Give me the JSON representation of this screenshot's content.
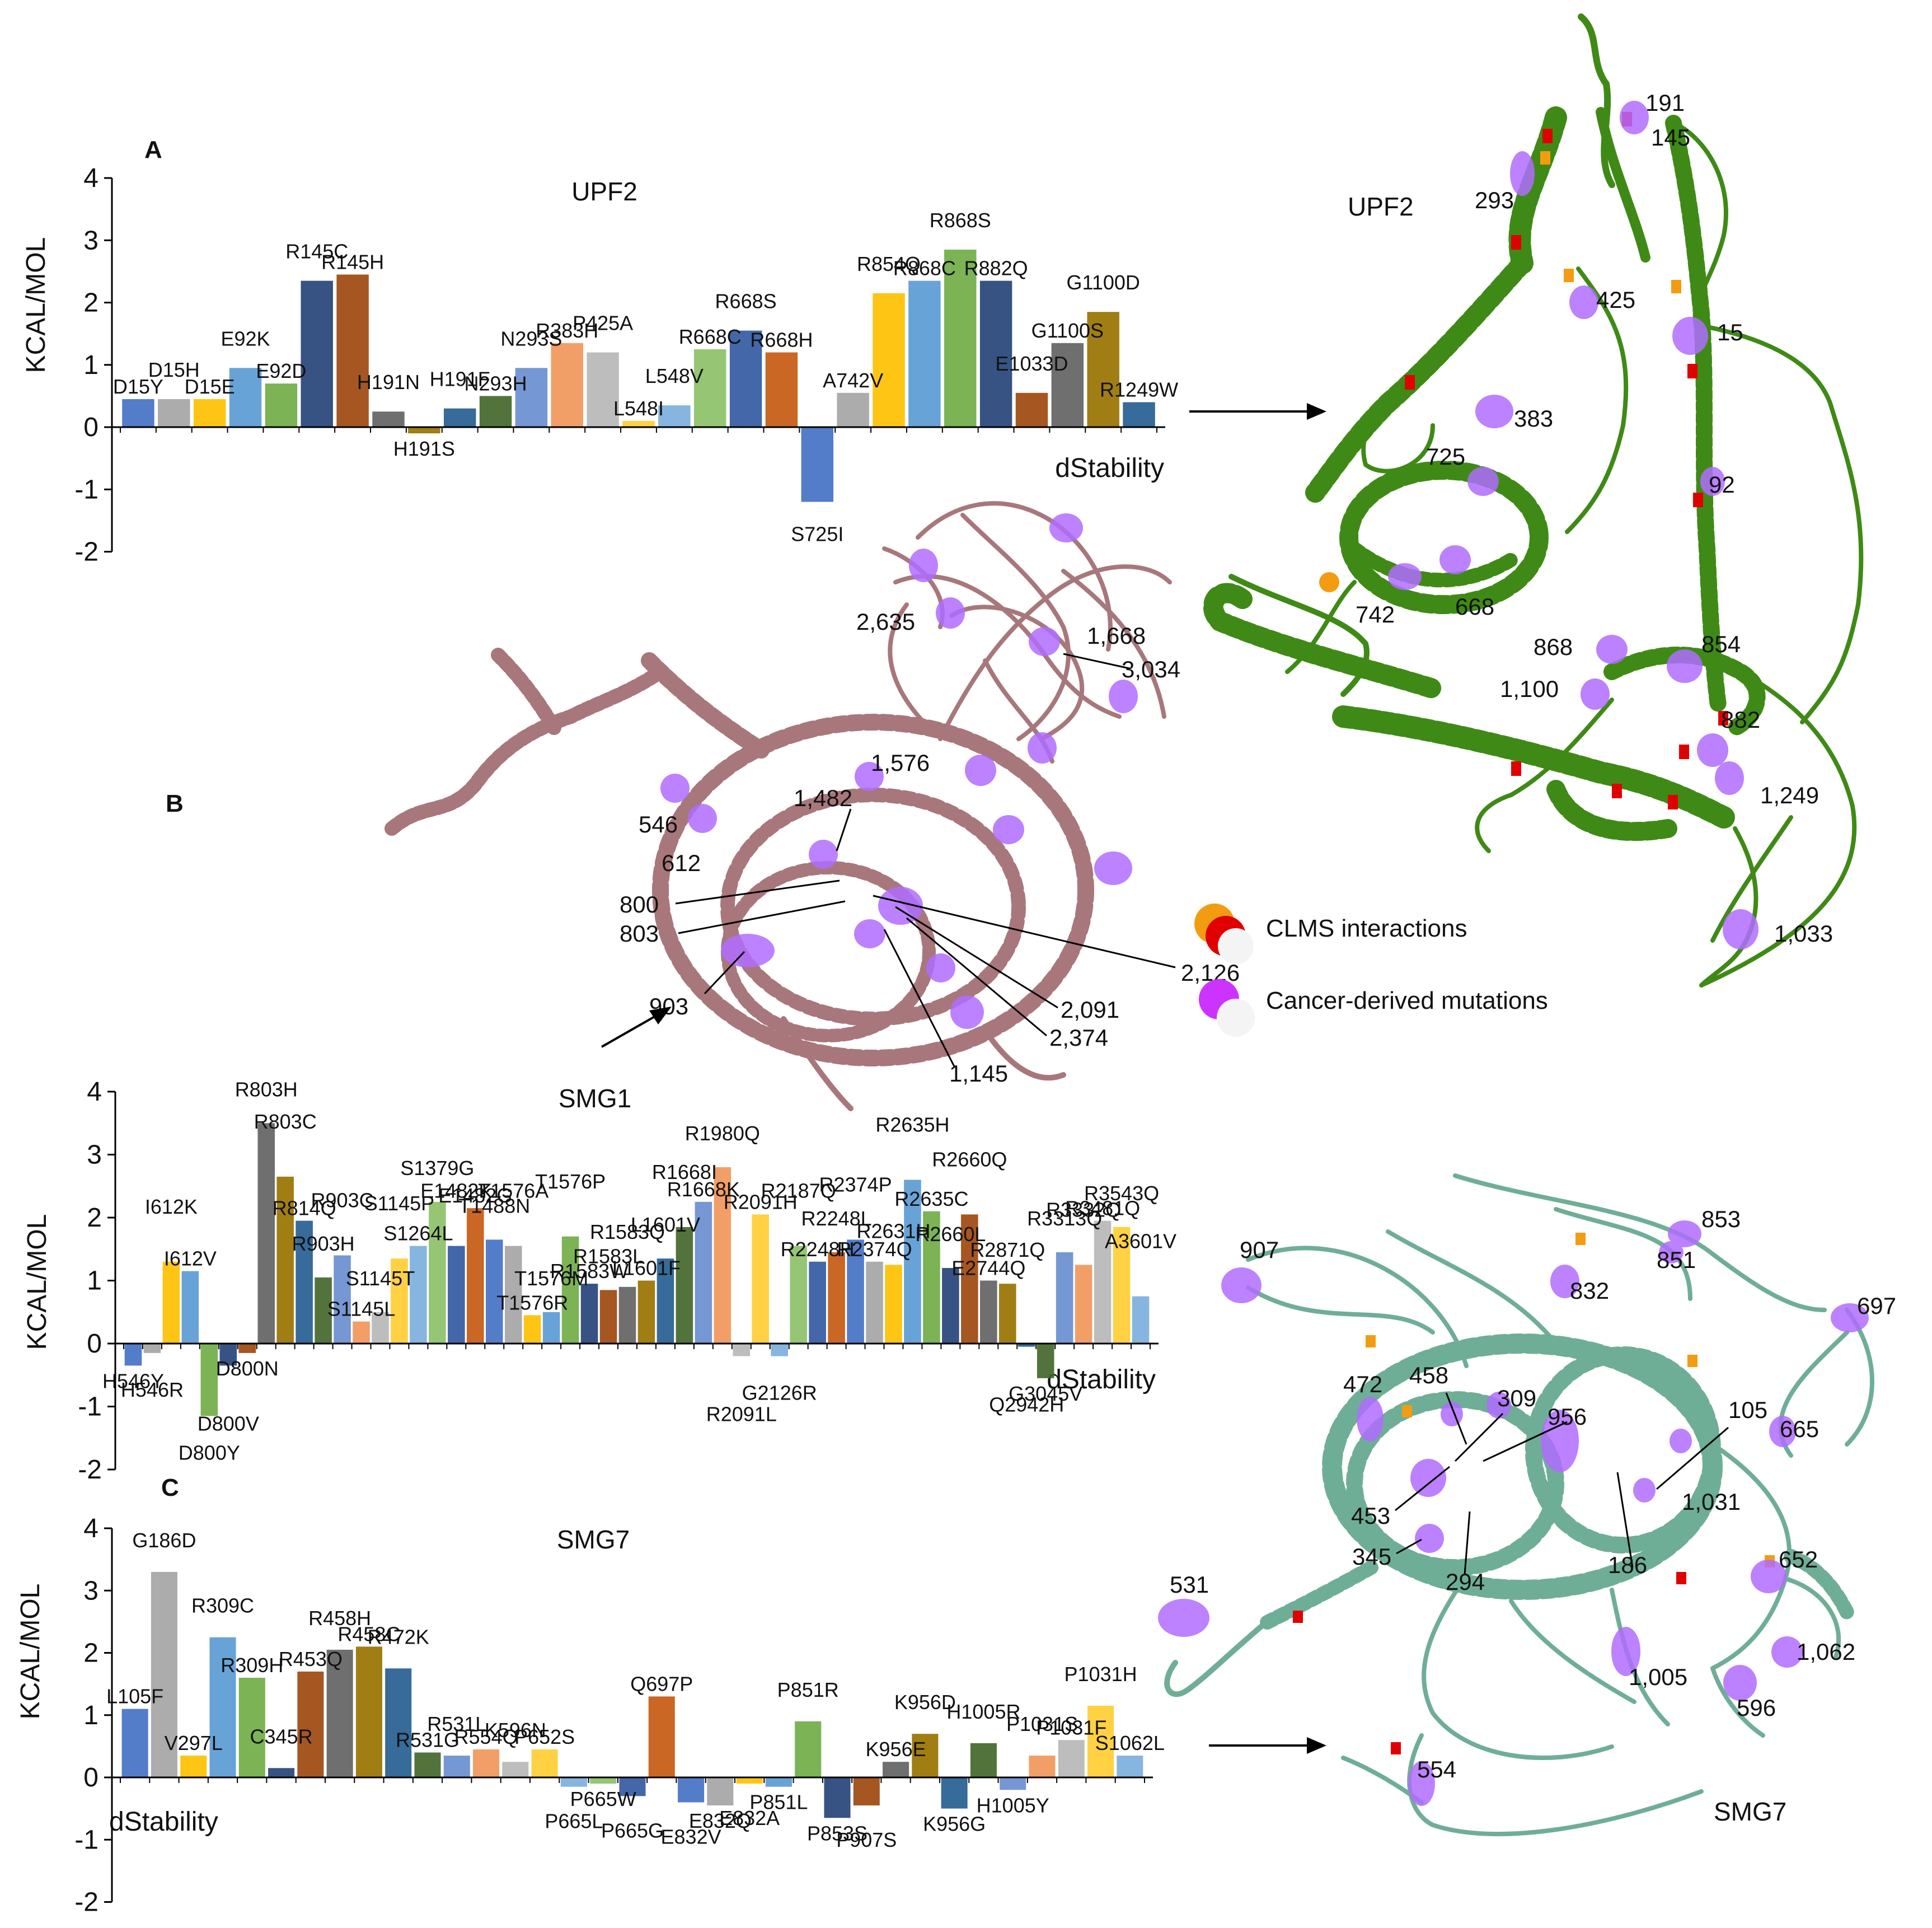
{
  "panels": {
    "a": "A",
    "b": "B",
    "c": "C"
  },
  "structure_labels": {
    "upf2_name": "UPF2",
    "smg1_name": "SMG1",
    "smg7_name": "SMG7",
    "upf2_residues": [
      "191",
      "145",
      "293",
      "425",
      "15",
      "383",
      "725",
      "92",
      "742",
      "668",
      "868",
      "854",
      "1,100",
      "882",
      "1,249",
      "1,033"
    ],
    "smg1_residues": [
      "2,635",
      "1,668",
      "3,034",
      "1,576",
      "1,482",
      "546",
      "612",
      "800",
      "803",
      "903",
      "2,126",
      "2,091",
      "2,374",
      "1,145"
    ],
    "smg7_residues": [
      "853",
      "907",
      "851",
      "832",
      "697",
      "472",
      "458",
      "309",
      "956",
      "105",
      "665",
      "1,031",
      "453",
      "345",
      "186",
      "294",
      "652",
      "531",
      "1,062",
      "1,005",
      "596",
      "554"
    ]
  },
  "legend": {
    "clms": "CLMS interactions",
    "cancer": "Cancer-derived mutations",
    "clms_colors": [
      "#f39c12",
      "#e00000"
    ],
    "cancer_color": "#cc33ff"
  },
  "colors": {
    "upf2_ribbon": "#3f8a16",
    "smg1_ribbon": "#a8777b",
    "smg7_ribbon": "#6fae96",
    "mesh": "#b06cff",
    "palette": [
      "#4472c4",
      "#a5a5a5",
      "#ffc000",
      "#5b9bd5",
      "#70ad47",
      "#264478",
      "#9e480e",
      "#636363",
      "#997300",
      "#255e91",
      "#43682b",
      "#698ed0",
      "#f1975a",
      "#b7b7b7",
      "#ffcd33",
      "#7cafdd",
      "#8cc168",
      "#335aa1",
      "#c55a11"
    ]
  },
  "chart_data": [
    {
      "type": "bar",
      "title": "UPF2",
      "xlabel": "dStability",
      "ylabel": "KCAL/MOL",
      "ylim": [
        -2,
        4
      ],
      "yticks": [
        "-2",
        "-1",
        "0",
        "1",
        "2",
        "3",
        "4"
      ],
      "categories": [
        "D15Y",
        "D15H",
        "D15E",
        "E92K",
        "E92D",
        "R145C",
        "R145H",
        "H191N",
        "H191S",
        "H191F",
        "N293H",
        "N293S",
        "R383H",
        "P425A",
        "L548I",
        "L548V",
        "R668C",
        "R668S",
        "R668H",
        "S725I",
        "A742V",
        "R854Q",
        "R868C",
        "R868S",
        "R882Q",
        "E1033D",
        "G1100S",
        "G1100D",
        "R1249W"
      ],
      "values": [
        0.45,
        0.45,
        0.45,
        0.95,
        0.7,
        2.35,
        2.45,
        0.25,
        -0.1,
        0.3,
        0.5,
        0.95,
        1.35,
        1.2,
        0.1,
        0.35,
        1.25,
        1.55,
        1.2,
        -1.2,
        0.55,
        2.15,
        2.35,
        2.85,
        2.35,
        0.55,
        1.35,
        1.85,
        0.4
      ]
    },
    {
      "type": "bar",
      "title": "SMG1",
      "xlabel": "dStability",
      "ylabel": "KCAL/MOL",
      "ylim": [
        -2,
        4
      ],
      "yticks": [
        "-2",
        "-1",
        "0",
        "1",
        "2",
        "3",
        "4"
      ],
      "categories": [
        "H546Y",
        "H546R",
        "I612K",
        "I612V",
        "D800Y",
        "D800V",
        "D800N",
        "R803H",
        "R803C",
        "R814Q",
        "R903H",
        "R903C",
        "S1145L",
        "S1145T",
        "S1145P",
        "S1264L",
        "S1379G",
        "E1482K",
        "E1482G",
        "T1488N",
        "T1576A",
        "T1576R",
        "T1576M",
        "T1576P",
        "R1583W",
        "R1583L",
        "R1583Q",
        "L1601F",
        "L1601V",
        "R1668I",
        "R1668K",
        "R1980Q",
        "R2091L",
        "R2091H",
        "G2126R",
        "R2187Q",
        "R2248H",
        "R2248L",
        "R2374P",
        "R2374Q",
        "R2631H",
        "R2635H",
        "R2635C",
        "R2660L",
        "R2660Q",
        "E2744Q",
        "R2871Q",
        "Q2942H",
        "G3045V",
        "R3313Q",
        "R3332Q",
        "R3481Q",
        "R3543Q",
        "A3601V"
      ],
      "values": [
        -0.35,
        -0.15,
        1.3,
        1.15,
        -1.15,
        -0.35,
        -0.15,
        3.5,
        2.65,
        1.95,
        1.05,
        1.4,
        0.35,
        0.5,
        1.35,
        1.55,
        2.25,
        1.55,
        2.15,
        1.65,
        1.55,
        0.45,
        0.5,
        1.7,
        0.95,
        0.85,
        0.9,
        1.0,
        1.35,
        1.85,
        2.25,
        2.8,
        -0.2,
        2.05,
        -0.2,
        1.55,
        1.3,
        1.45,
        1.65,
        1.3,
        1.25,
        2.6,
        2.1,
        1.2,
        2.05,
        1.0,
        0.95,
        -0.05,
        -0.55,
        1.45,
        1.25,
        1.95,
        1.85,
        0.75
      ]
    },
    {
      "type": "bar",
      "title": "SMG7",
      "xlabel": "dStability",
      "ylabel": "KCAL/MOL",
      "ylim": [
        -2,
        4
      ],
      "yticks": [
        "-2",
        "-1",
        "0",
        "1",
        "2",
        "3",
        "4"
      ],
      "categories": [
        "L105F",
        "G186D",
        "V297L",
        "R309C",
        "R309H",
        "C345R",
        "R453Q",
        "R458H",
        "R458C",
        "R472K",
        "R531G",
        "R531L",
        "R554Q",
        "K596N",
        "P652S",
        "P665L",
        "P665W",
        "P665G",
        "Q697P",
        "E832V",
        "E832Q",
        "E832A",
        "P851L",
        "P851R",
        "P853S",
        "P907S",
        "K956E",
        "K956D",
        "K956G",
        "H1005R",
        "H1005Y",
        "P1031S",
        "P1031F",
        "P1031H",
        "S1062L"
      ],
      "values": [
        1.1,
        3.3,
        0.35,
        2.25,
        1.6,
        0.15,
        1.7,
        2.05,
        2.1,
        1.75,
        0.4,
        0.35,
        0.45,
        0.25,
        0.45,
        -0.15,
        -0.1,
        -0.3,
        1.3,
        -0.4,
        -0.45,
        -0.1,
        -0.15,
        0.9,
        -0.65,
        -0.45,
        0.25,
        0.7,
        -0.5,
        0.55,
        -0.2,
        0.35,
        0.6,
        1.15,
        0.35
      ]
    }
  ]
}
